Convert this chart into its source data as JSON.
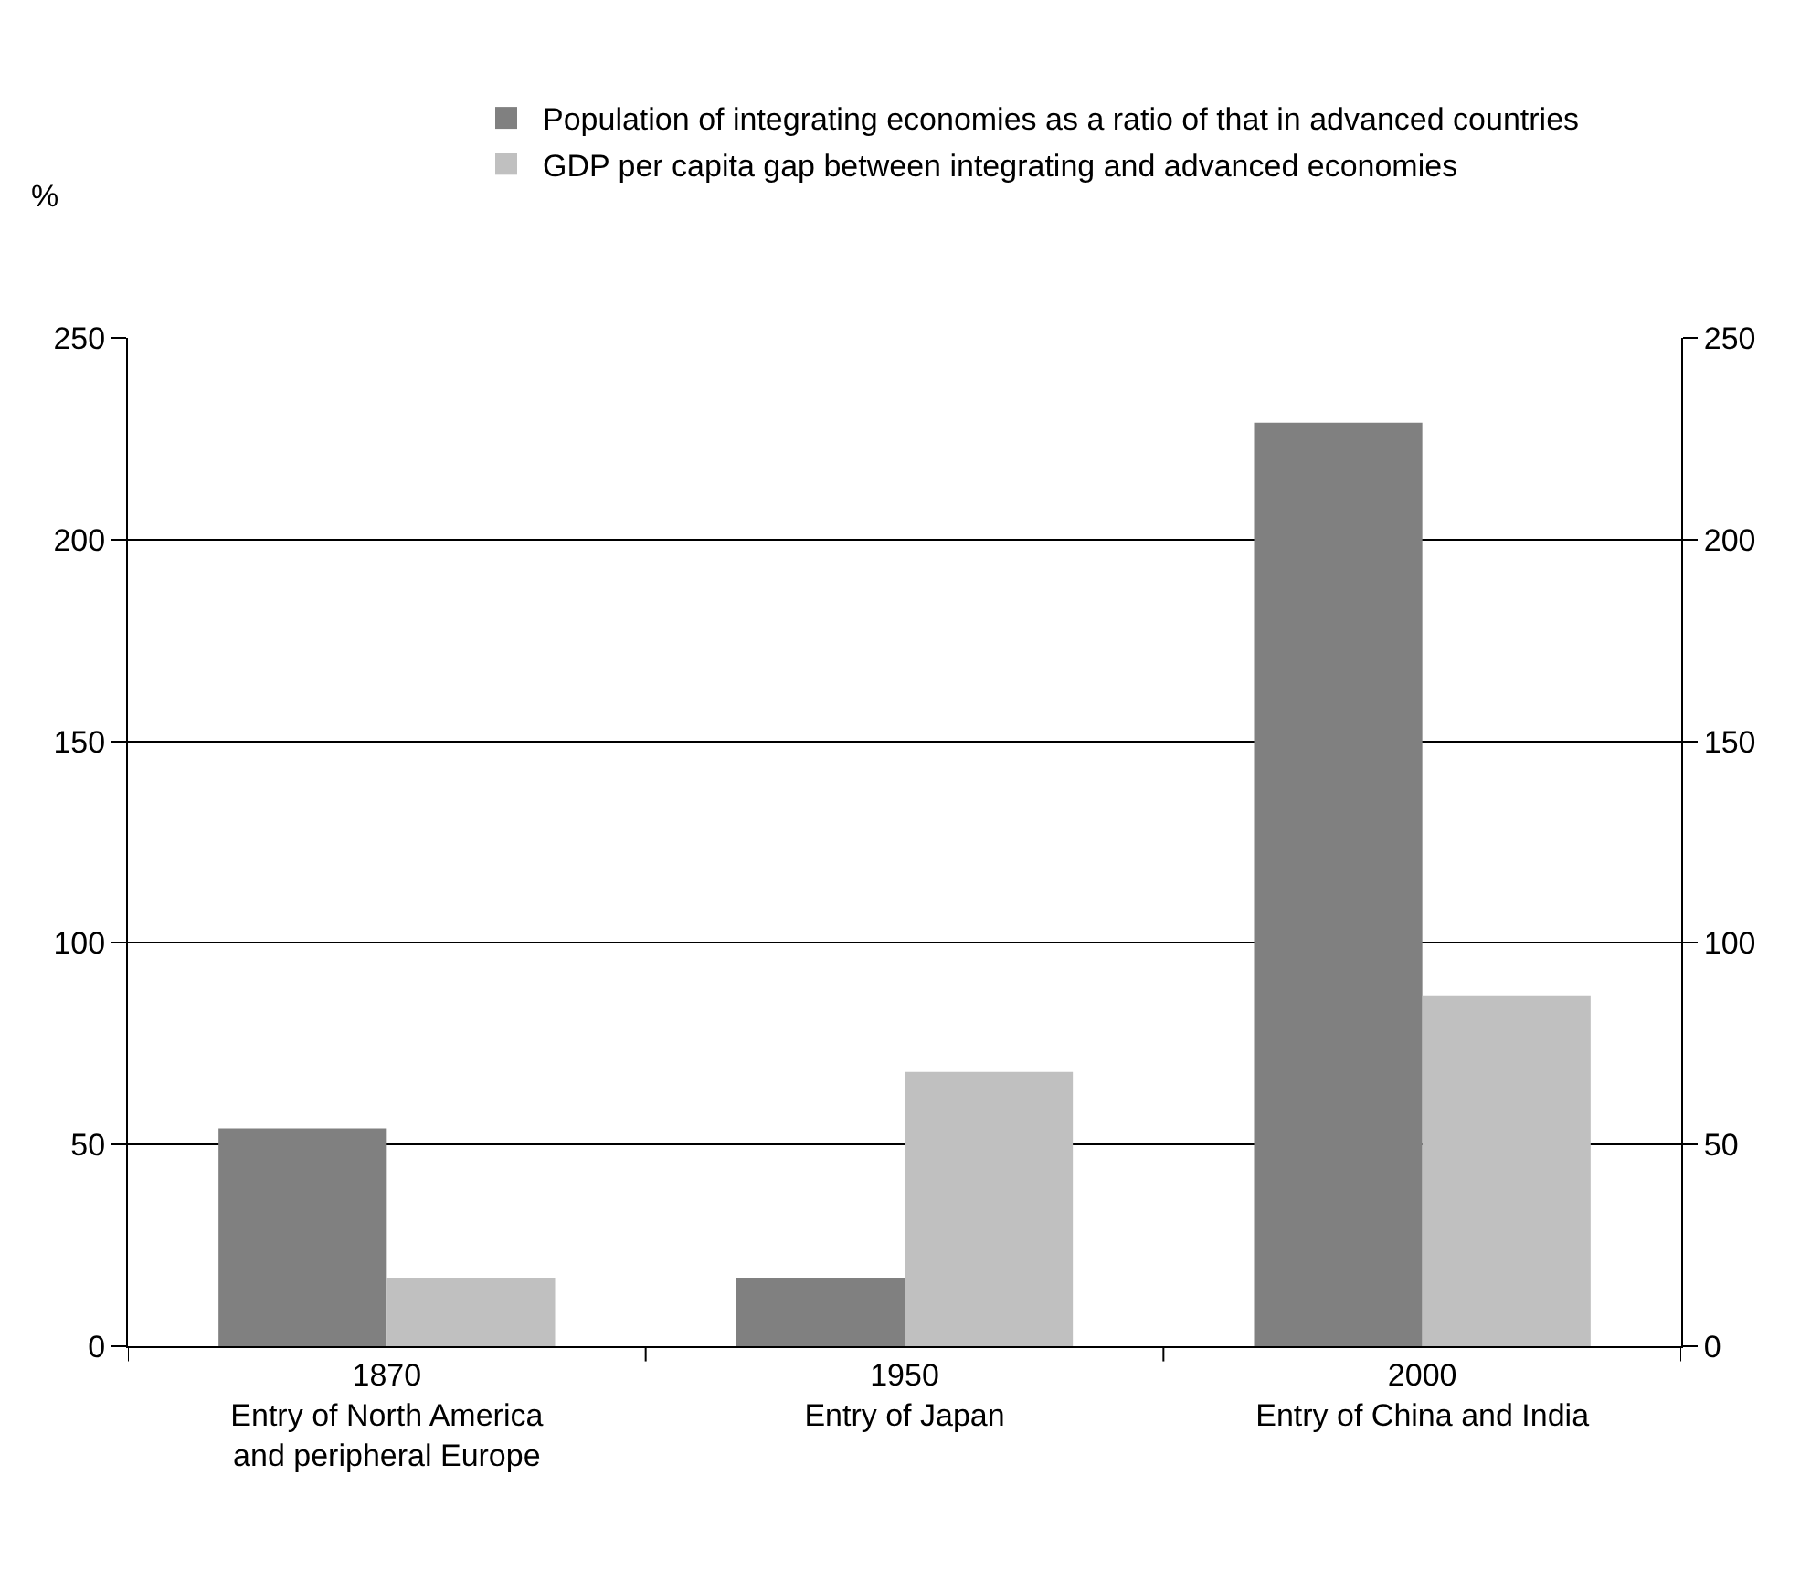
{
  "chart_data": {
    "type": "bar",
    "categories": [
      "1870\nEntry of North America\nand peripheral Europe",
      "1950\nEntry of Japan",
      "2000\nEntry of China and India"
    ],
    "series": [
      {
        "name": "Population of integrating economies as a ratio of that in advanced countries",
        "color": "#808080",
        "values": [
          54,
          17,
          229
        ]
      },
      {
        "name": "GDP per capita gap between integrating and advanced economies",
        "color": "#c0c0c0",
        "values": [
          17,
          68,
          87
        ]
      }
    ],
    "ylabel": "%",
    "ylim": [
      0,
      250
    ],
    "yticks": [
      0,
      50,
      100,
      150,
      200,
      250
    ],
    "y2lim": [
      0,
      250
    ],
    "y2ticks": [
      0,
      50,
      100,
      150,
      200,
      250
    ],
    "grid": "y",
    "legend": "top"
  }
}
